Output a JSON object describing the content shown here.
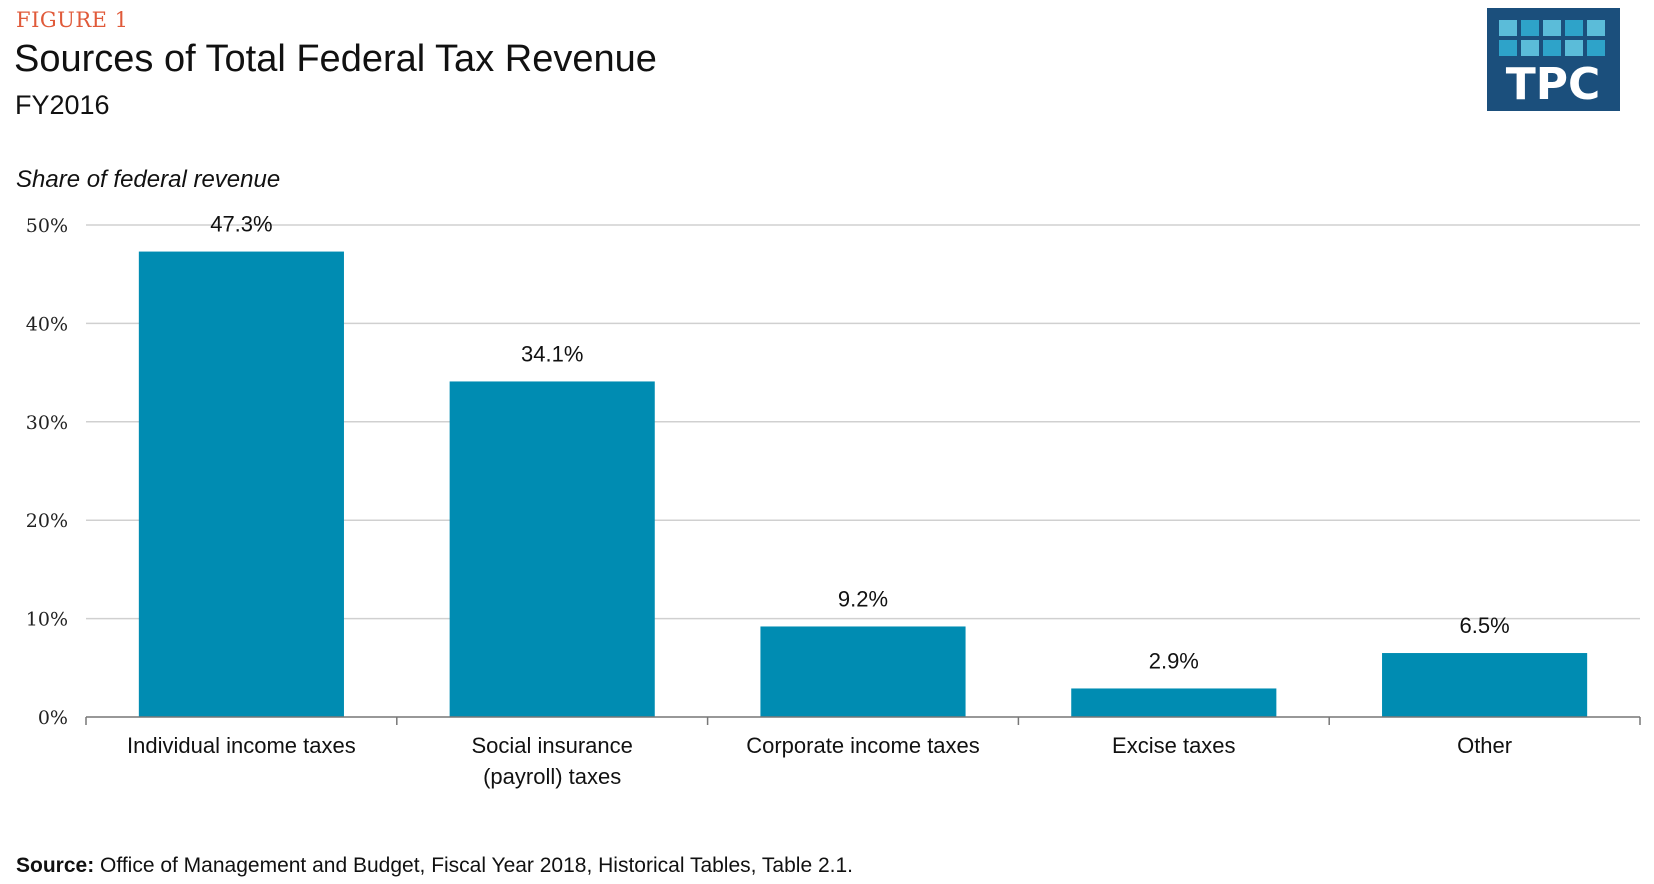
{
  "header": {
    "figure_label": "FIGURE 1",
    "title": "Sources of Total Federal Tax Revenue",
    "subtitle": "FY2016",
    "logo_text": "TPC"
  },
  "footer": {
    "source_label": "Source:",
    "source_text": "Office of Management and Budget, Fiscal Year 2018, Historical Tables, Table 2.1."
  },
  "colors": {
    "bar": "#008cb2",
    "figure_label": "#e05a3a",
    "logo_bg": "#1b4f7c",
    "logo_tile_light": "#5bbcd9",
    "logo_tile_mid": "#2ea3c9",
    "gridline": "#d0d0d0"
  },
  "chart_data": {
    "type": "bar",
    "ylabel": "Share of federal revenue",
    "xlabel": "",
    "categories": [
      [
        "Individual income taxes"
      ],
      [
        "Social insurance",
        "(payroll) taxes"
      ],
      [
        "Corporate income taxes"
      ],
      [
        "Excise taxes"
      ],
      [
        "Other"
      ]
    ],
    "values": [
      47.3,
      34.1,
      9.2,
      2.9,
      6.5
    ],
    "data_labels": [
      "47.3%",
      "34.1%",
      "9.2%",
      "2.9%",
      "6.5%"
    ],
    "ylim": [
      0,
      50
    ],
    "yticks": [
      0,
      10,
      20,
      30,
      40,
      50
    ],
    "ytick_labels": [
      "0%",
      "10%",
      "20%",
      "30%",
      "40%",
      "50%"
    ],
    "grid": true,
    "legend": "none"
  }
}
